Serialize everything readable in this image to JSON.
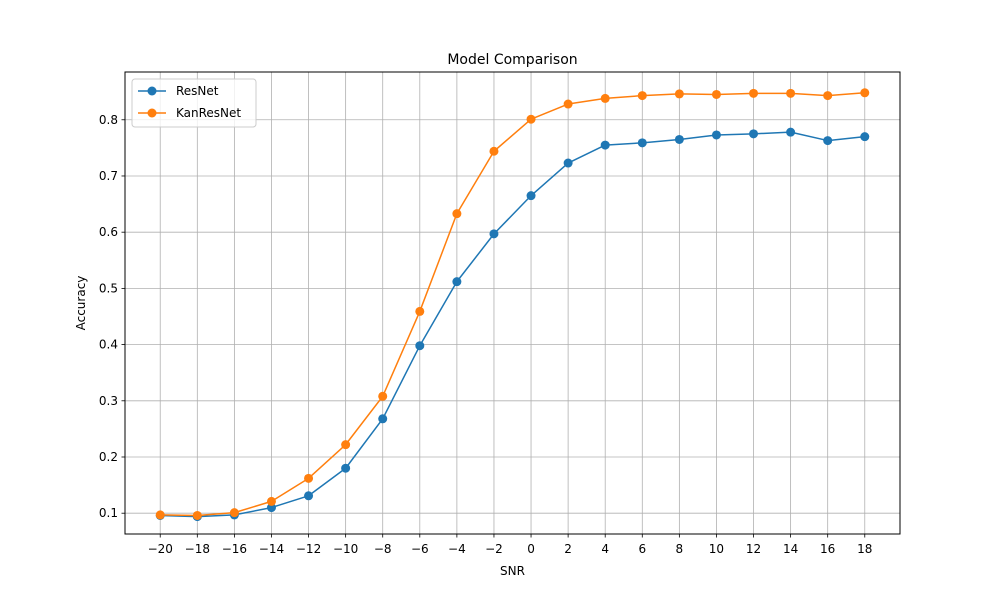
{
  "chart_data": {
    "type": "line",
    "title": "Model Comparison",
    "xlabel": "SNR",
    "ylabel": "Accuracy",
    "x": [
      -20,
      -18,
      -16,
      -14,
      -12,
      -10,
      -8,
      -6,
      -4,
      -2,
      0,
      2,
      4,
      6,
      8,
      10,
      12,
      14,
      16,
      18
    ],
    "x_ticks": [
      "−20",
      "−18",
      "−16",
      "−14",
      "−12",
      "−10",
      "−8",
      "−6",
      "−4",
      "−2",
      "0",
      "2",
      "4",
      "6",
      "8",
      "10",
      "12",
      "14",
      "16",
      "18"
    ],
    "y_ticks": [
      "0.1",
      "0.2",
      "0.3",
      "0.4",
      "0.5",
      "0.6",
      "0.7",
      "0.8"
    ],
    "xlim": [
      -21.9,
      19.9
    ],
    "ylim": [
      0.063,
      0.885
    ],
    "grid": true,
    "legend": "top-left",
    "series": [
      {
        "name": "ResNet",
        "color": "#1f77b4",
        "values": [
          0.096,
          0.094,
          0.097,
          0.11,
          0.131,
          0.18,
          0.268,
          0.398,
          0.512,
          0.597,
          0.665,
          0.723,
          0.755,
          0.759,
          0.765,
          0.773,
          0.775,
          0.778,
          0.763,
          0.77
        ]
      },
      {
        "name": "KanResNet",
        "color": "#ff7f0e",
        "values": [
          0.097,
          0.096,
          0.101,
          0.121,
          0.162,
          0.222,
          0.308,
          0.459,
          0.633,
          0.744,
          0.801,
          0.828,
          0.838,
          0.843,
          0.846,
          0.845,
          0.847,
          0.847,
          0.843,
          0.848
        ]
      }
    ]
  }
}
